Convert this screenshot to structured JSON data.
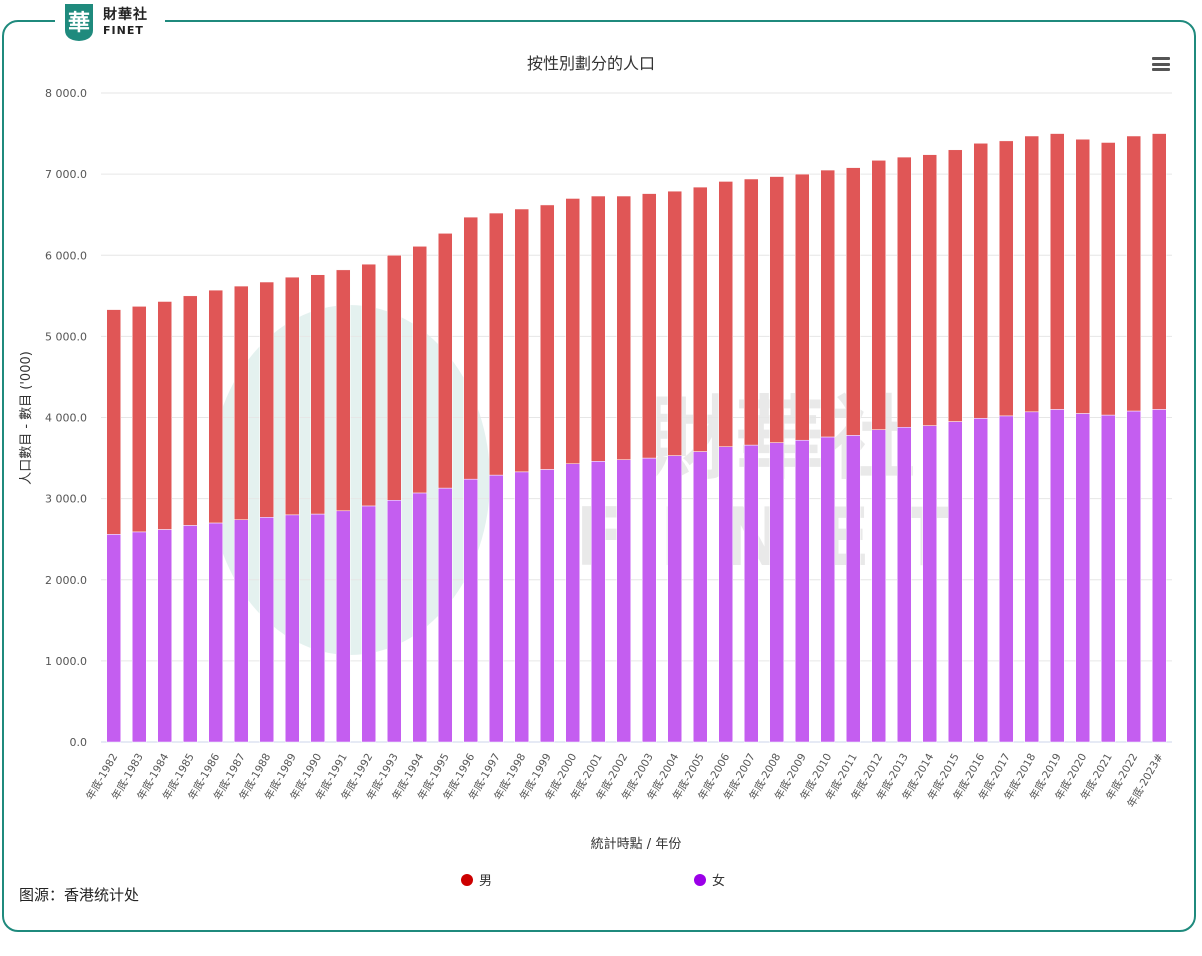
{
  "brand": {
    "logo_char": "華",
    "name_cn": "財華社",
    "name_en": "FINET"
  },
  "menu_icon": "hamburger-menu-icon",
  "source_note": "图源：香港统计处",
  "watermark": {
    "cn": "財華社",
    "en": "FINET"
  },
  "colors": {
    "male": "#e05656",
    "female": "#c45ef0",
    "male_legend": "#cc0000",
    "female_legend": "#9b00e8",
    "frame": "#1f8a7d"
  },
  "chart_data": {
    "type": "bar",
    "stacked": true,
    "title": "按性別劃分的人口",
    "xlabel": "統計時點 / 年份",
    "ylabel": "人口數目 - 數目 ('000)",
    "ylim": [
      0,
      8000
    ],
    "yticks": [
      "0.0",
      "1 000.0",
      "2 000.0",
      "3 000.0",
      "4 000.0",
      "5 000.0",
      "6 000.0",
      "7 000.0",
      "8 000.0"
    ],
    "grid": true,
    "legend_position": "bottom",
    "categories": [
      "年底-1982",
      "年底-1983",
      "年底-1984",
      "年底-1985",
      "年底-1986",
      "年底-1987",
      "年底-1988",
      "年底-1989",
      "年底-1990",
      "年底-1991",
      "年底-1992",
      "年底-1993",
      "年底-1994",
      "年底-1995",
      "年底-1996",
      "年底-1997",
      "年底-1998",
      "年底-1999",
      "年底-2000",
      "年底-2001",
      "年底-2002",
      "年底-2003",
      "年底-2004",
      "年底-2005",
      "年底-2006",
      "年底-2007",
      "年底-2008",
      "年底-2009",
      "年底-2010",
      "年底-2011",
      "年底-2012",
      "年底-2013",
      "年底-2014",
      "年底-2015",
      "年底-2016",
      "年底-2017",
      "年底-2018",
      "年底-2019",
      "年底-2020",
      "年底-2021",
      "年底-2022",
      "年底-2023#"
    ],
    "series": [
      {
        "name": "男",
        "values": [
          2770,
          2780,
          2810,
          2830,
          2870,
          2880,
          2900,
          2930,
          2950,
          2970,
          2980,
          3020,
          3040,
          3140,
          3230,
          3230,
          3240,
          3260,
          3270,
          3270,
          3250,
          3260,
          3260,
          3260,
          3270,
          3280,
          3280,
          3280,
          3290,
          3300,
          3320,
          3330,
          3340,
          3350,
          3390,
          3390,
          3400,
          3400,
          3380,
          3360,
          3390,
          3400
        ]
      },
      {
        "name": "女",
        "values": [
          2560,
          2590,
          2620,
          2670,
          2700,
          2740,
          2770,
          2800,
          2810,
          2850,
          2910,
          2980,
          3070,
          3130,
          3240,
          3290,
          3330,
          3360,
          3430,
          3460,
          3480,
          3500,
          3530,
          3580,
          3640,
          3660,
          3690,
          3720,
          3760,
          3780,
          3850,
          3880,
          3900,
          3950,
          3990,
          4020,
          4070,
          4100,
          4050,
          4030,
          4080,
          4100
        ]
      }
    ]
  }
}
